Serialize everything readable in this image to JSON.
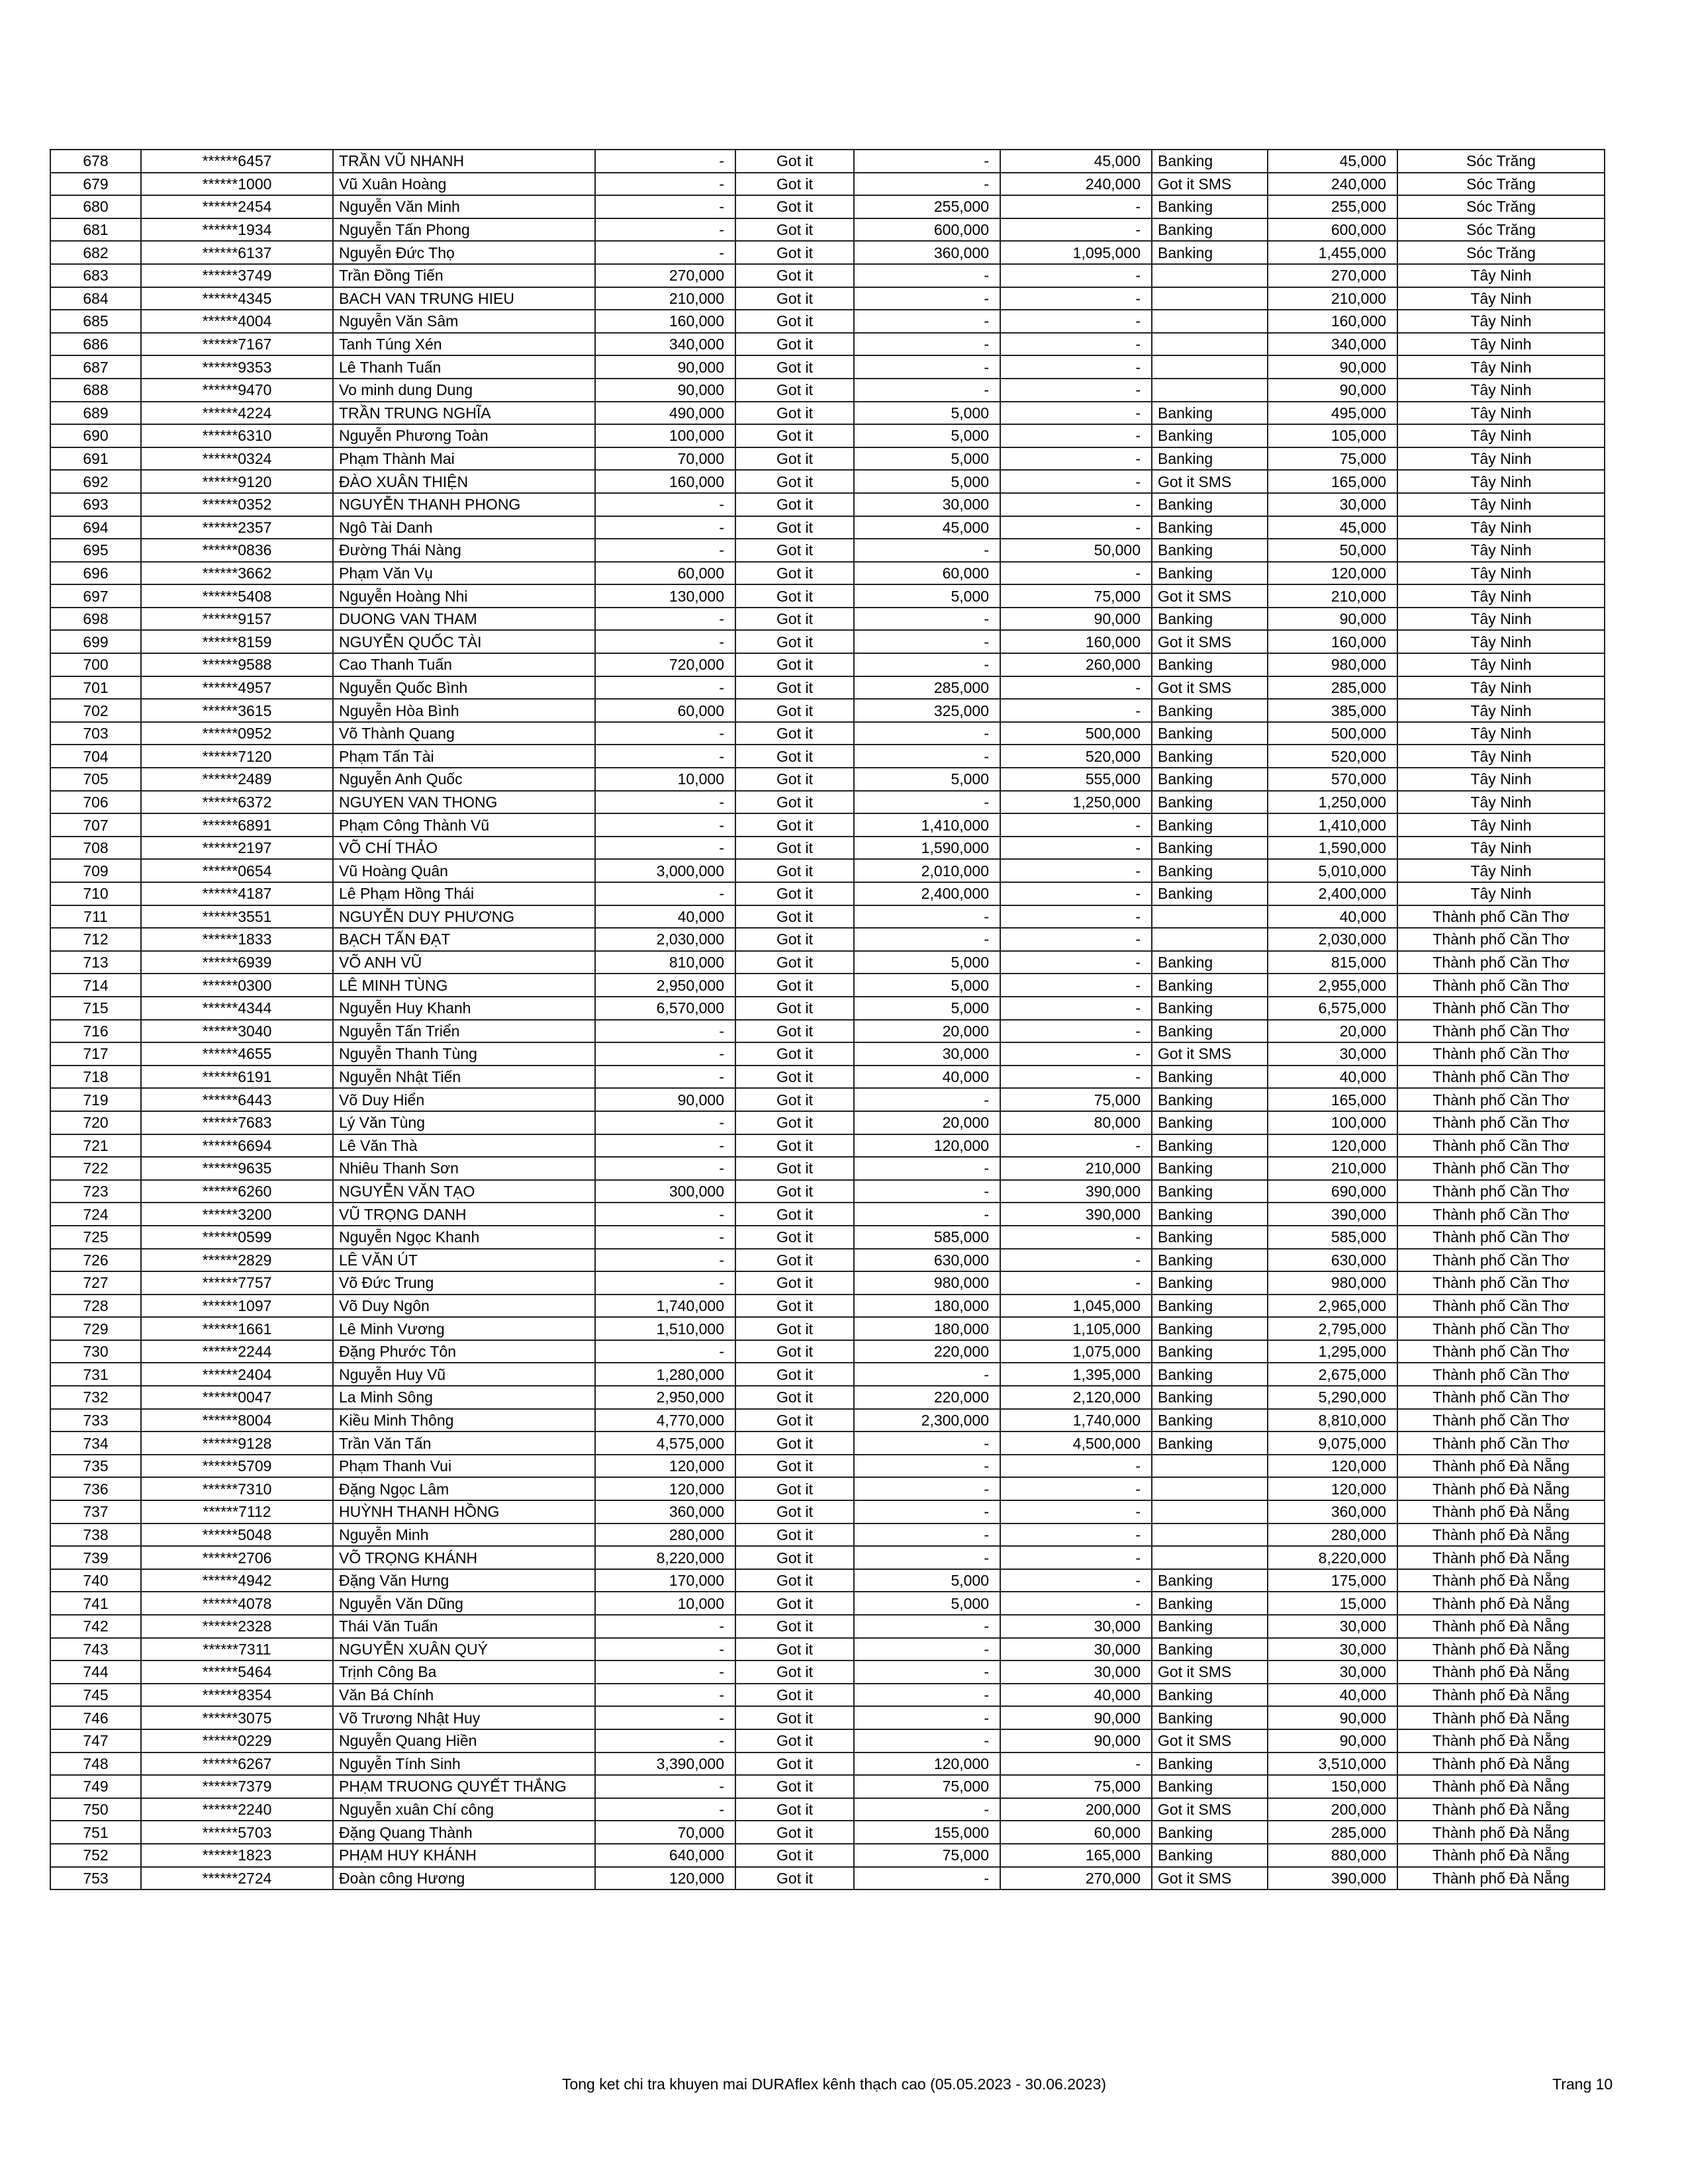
{
  "footer": {
    "title": "Tong ket chi tra khuyen mai DURAflex kênh thạch cao (05.05.2023 - 30.06.2023)",
    "page": "Trang 10"
  },
  "rows": [
    [
      "678",
      "******6457",
      "TRẦN VŨ NHANH",
      "-",
      "Got it",
      "-",
      "45,000",
      "Banking",
      "45,000",
      "Sóc Trăng"
    ],
    [
      "679",
      "******1000",
      "Vũ Xuân Hoàng",
      "-",
      "Got it",
      "-",
      "240,000",
      "Got it SMS",
      "240,000",
      "Sóc Trăng"
    ],
    [
      "680",
      "******2454",
      "Nguyễn Văn Minh",
      "-",
      "Got it",
      "255,000",
      "-",
      "Banking",
      "255,000",
      "Sóc Trăng"
    ],
    [
      "681",
      "******1934",
      "Nguyễn Tấn Phong",
      "-",
      "Got it",
      "600,000",
      "-",
      "Banking",
      "600,000",
      "Sóc Trăng"
    ],
    [
      "682",
      "******6137",
      "Nguyễn Đức Thọ",
      "-",
      "Got it",
      "360,000",
      "1,095,000",
      "Banking",
      "1,455,000",
      "Sóc Trăng"
    ],
    [
      "683",
      "******3749",
      "Trần Đồng Tiến",
      "270,000",
      "Got it",
      "-",
      "-",
      "",
      "270,000",
      "Tây Ninh"
    ],
    [
      "684",
      "******4345",
      "BACH VAN TRUNG HIEU",
      "210,000",
      "Got it",
      "-",
      "-",
      "",
      "210,000",
      "Tây Ninh"
    ],
    [
      "685",
      "******4004",
      "Nguyễn Văn Sâm",
      "160,000",
      "Got it",
      "-",
      "-",
      "",
      "160,000",
      "Tây Ninh"
    ],
    [
      "686",
      "******7167",
      "Tanh Túng Xén",
      "340,000",
      "Got it",
      "-",
      "-",
      "",
      "340,000",
      "Tây Ninh"
    ],
    [
      "687",
      "******9353",
      "Lê Thanh Tuấn",
      "90,000",
      "Got it",
      "-",
      "-",
      "",
      "90,000",
      "Tây Ninh"
    ],
    [
      "688",
      "******9470",
      "Vo minh dung Dung",
      "90,000",
      "Got it",
      "-",
      "-",
      "",
      "90,000",
      "Tây Ninh"
    ],
    [
      "689",
      "******4224",
      "TRẦN TRUNG NGHĨA",
      "490,000",
      "Got it",
      "5,000",
      "-",
      "Banking",
      "495,000",
      "Tây Ninh"
    ],
    [
      "690",
      "******6310",
      "Nguyễn Phương Toàn",
      "100,000",
      "Got it",
      "5,000",
      "-",
      "Banking",
      "105,000",
      "Tây Ninh"
    ],
    [
      "691",
      "******0324",
      "Phạm Thành Mai",
      "70,000",
      "Got it",
      "5,000",
      "-",
      "Banking",
      "75,000",
      "Tây Ninh"
    ],
    [
      "692",
      "******9120",
      "ĐÀO XUÂN THIỆN",
      "160,000",
      "Got it",
      "5,000",
      "-",
      "Got it SMS",
      "165,000",
      "Tây Ninh"
    ],
    [
      "693",
      "******0352",
      "NGUYỄN THANH PHONG",
      "-",
      "Got it",
      "30,000",
      "-",
      "Banking",
      "30,000",
      "Tây Ninh"
    ],
    [
      "694",
      "******2357",
      "Ngô Tài Danh",
      "-",
      "Got it",
      "45,000",
      "-",
      "Banking",
      "45,000",
      "Tây Ninh"
    ],
    [
      "695",
      "******0836",
      "Đường Thái Nàng",
      "-",
      "Got it",
      "-",
      "50,000",
      "Banking",
      "50,000",
      "Tây Ninh"
    ],
    [
      "696",
      "******3662",
      "Phạm Văn Vụ",
      "60,000",
      "Got it",
      "60,000",
      "-",
      "Banking",
      "120,000",
      "Tây Ninh"
    ],
    [
      "697",
      "******5408",
      "Nguyễn Hoàng Nhi",
      "130,000",
      "Got it",
      "5,000",
      "75,000",
      "Got it SMS",
      "210,000",
      "Tây Ninh"
    ],
    [
      "698",
      "******9157",
      "DUONG VAN THAM",
      "-",
      "Got it",
      "-",
      "90,000",
      "Banking",
      "90,000",
      "Tây Ninh"
    ],
    [
      "699",
      "******8159",
      "NGUYỄN QUỐC TÀI",
      "-",
      "Got it",
      "-",
      "160,000",
      "Got it SMS",
      "160,000",
      "Tây Ninh"
    ],
    [
      "700",
      "******9588",
      "Cao Thanh Tuấn",
      "720,000",
      "Got it",
      "-",
      "260,000",
      "Banking",
      "980,000",
      "Tây Ninh"
    ],
    [
      "701",
      "******4957",
      "Nguyễn Quốc Bình",
      "-",
      "Got it",
      "285,000",
      "-",
      "Got it SMS",
      "285,000",
      "Tây Ninh"
    ],
    [
      "702",
      "******3615",
      "Nguyễn Hòa Bình",
      "60,000",
      "Got it",
      "325,000",
      "-",
      "Banking",
      "385,000",
      "Tây Ninh"
    ],
    [
      "703",
      "******0952",
      "Võ Thành Quang",
      "-",
      "Got it",
      "-",
      "500,000",
      "Banking",
      "500,000",
      "Tây Ninh"
    ],
    [
      "704",
      "******7120",
      "Phạm Tấn Tài",
      "-",
      "Got it",
      "-",
      "520,000",
      "Banking",
      "520,000",
      "Tây Ninh"
    ],
    [
      "705",
      "******2489",
      "Nguyễn Anh Quốc",
      "10,000",
      "Got it",
      "5,000",
      "555,000",
      "Banking",
      "570,000",
      "Tây Ninh"
    ],
    [
      "706",
      "******6372",
      "NGUYEN VAN THONG",
      "-",
      "Got it",
      "-",
      "1,250,000",
      "Banking",
      "1,250,000",
      "Tây Ninh"
    ],
    [
      "707",
      "******6891",
      "Phạm Công Thành Vũ",
      "-",
      "Got it",
      "1,410,000",
      "-",
      "Banking",
      "1,410,000",
      "Tây Ninh"
    ],
    [
      "708",
      "******2197",
      "VÕ CHÍ THẢO",
      "-",
      "Got it",
      "1,590,000",
      "-",
      "Banking",
      "1,590,000",
      "Tây Ninh"
    ],
    [
      "709",
      "******0654",
      "Vũ Hoàng Quân",
      "3,000,000",
      "Got it",
      "2,010,000",
      "-",
      "Banking",
      "5,010,000",
      "Tây Ninh"
    ],
    [
      "710",
      "******4187",
      "Lê Phạm Hồng Thái",
      "-",
      "Got it",
      "2,400,000",
      "-",
      "Banking",
      "2,400,000",
      "Tây Ninh"
    ],
    [
      "711",
      "******3551",
      "NGUYỄN DUY PHƯƠNG",
      "40,000",
      "Got it",
      "-",
      "-",
      "",
      "40,000",
      "Thành phố Cần Thơ"
    ],
    [
      "712",
      "******1833",
      "BẠCH TẤN ĐẠT",
      "2,030,000",
      "Got it",
      "-",
      "-",
      "",
      "2,030,000",
      "Thành phố Cần Thơ"
    ],
    [
      "713",
      "******6939",
      "VÕ ANH VŨ",
      "810,000",
      "Got it",
      "5,000",
      "-",
      "Banking",
      "815,000",
      "Thành phố Cần Thơ"
    ],
    [
      "714",
      "******0300",
      "LÊ MINH TÙNG",
      "2,950,000",
      "Got it",
      "5,000",
      "-",
      "Banking",
      "2,955,000",
      "Thành phố Cần Thơ"
    ],
    [
      "715",
      "******4344",
      "Nguyễn Huy Khanh",
      "6,570,000",
      "Got it",
      "5,000",
      "-",
      "Banking",
      "6,575,000",
      "Thành phố Cần Thơ"
    ],
    [
      "716",
      "******3040",
      "Nguyễn Tấn Triển",
      "-",
      "Got it",
      "20,000",
      "-",
      "Banking",
      "20,000",
      "Thành phố Cần Thơ"
    ],
    [
      "717",
      "******4655",
      "Nguyễn Thanh Tùng",
      "-",
      "Got it",
      "30,000",
      "-",
      "Got it SMS",
      "30,000",
      "Thành phố Cần Thơ"
    ],
    [
      "718",
      "******6191",
      "Nguyễn Nhật Tiến",
      "-",
      "Got it",
      "40,000",
      "-",
      "Banking",
      "40,000",
      "Thành phố Cần Thơ"
    ],
    [
      "719",
      "******6443",
      "Võ Duy Hiển",
      "90,000",
      "Got it",
      "-",
      "75,000",
      "Banking",
      "165,000",
      "Thành phố Cần Thơ"
    ],
    [
      "720",
      "******7683",
      "Lý Văn Tùng",
      "-",
      "Got it",
      "20,000",
      "80,000",
      "Banking",
      "100,000",
      "Thành phố Cần Thơ"
    ],
    [
      "721",
      "******6694",
      "Lê Văn Thà",
      "-",
      "Got it",
      "120,000",
      "-",
      "Banking",
      "120,000",
      "Thành phố Cần Thơ"
    ],
    [
      "722",
      "******9635",
      "Nhiêu Thanh Sơn",
      "-",
      "Got it",
      "-",
      "210,000",
      "Banking",
      "210,000",
      "Thành phố Cần Thơ"
    ],
    [
      "723",
      "******6260",
      "NGUYỄN VĂN TẠO",
      "300,000",
      "Got it",
      "-",
      "390,000",
      "Banking",
      "690,000",
      "Thành phố Cần Thơ"
    ],
    [
      "724",
      "******3200",
      "VŨ TRỌNG DANH",
      "-",
      "Got it",
      "-",
      "390,000",
      "Banking",
      "390,000",
      "Thành phố Cần Thơ"
    ],
    [
      "725",
      "******0599",
      "Nguyễn Ngọc Khanh",
      "-",
      "Got it",
      "585,000",
      "-",
      "Banking",
      "585,000",
      "Thành phố Cần Thơ"
    ],
    [
      "726",
      "******2829",
      "LÊ VĂN ÚT",
      "-",
      "Got it",
      "630,000",
      "-",
      "Banking",
      "630,000",
      "Thành phố Cần Thơ"
    ],
    [
      "727",
      "******7757",
      "Võ Đức Trung",
      "-",
      "Got it",
      "980,000",
      "-",
      "Banking",
      "980,000",
      "Thành phố Cần Thơ"
    ],
    [
      "728",
      "******1097",
      "Võ Duy Ngôn",
      "1,740,000",
      "Got it",
      "180,000",
      "1,045,000",
      "Banking",
      "2,965,000",
      "Thành phố Cần Thơ"
    ],
    [
      "729",
      "******1661",
      "Lê Minh Vương",
      "1,510,000",
      "Got it",
      "180,000",
      "1,105,000",
      "Banking",
      "2,795,000",
      "Thành phố Cần Thơ"
    ],
    [
      "730",
      "******2244",
      "Đặng Phước Tôn",
      "-",
      "Got it",
      "220,000",
      "1,075,000",
      "Banking",
      "1,295,000",
      "Thành phố Cần Thơ"
    ],
    [
      "731",
      "******2404",
      "Nguyễn Huy Vũ",
      "1,280,000",
      "Got it",
      "-",
      "1,395,000",
      "Banking",
      "2,675,000",
      "Thành phố Cần Thơ"
    ],
    [
      "732",
      "******0047",
      "La Minh Sông",
      "2,950,000",
      "Got it",
      "220,000",
      "2,120,000",
      "Banking",
      "5,290,000",
      "Thành phố Cần Thơ"
    ],
    [
      "733",
      "******8004",
      "Kiều Minh Thông",
      "4,770,000",
      "Got it",
      "2,300,000",
      "1,740,000",
      "Banking",
      "8,810,000",
      "Thành phố Cần Thơ"
    ],
    [
      "734",
      "******9128",
      "Trần Văn Tấn",
      "4,575,000",
      "Got it",
      "-",
      "4,500,000",
      "Banking",
      "9,075,000",
      "Thành phố Cần Thơ"
    ],
    [
      "735",
      "******5709",
      "Phạm Thanh Vui",
      "120,000",
      "Got it",
      "-",
      "-",
      "",
      "120,000",
      "Thành phố Đà Nẵng"
    ],
    [
      "736",
      "******7310",
      "Đặng Ngọc Lâm",
      "120,000",
      "Got it",
      "-",
      "-",
      "",
      "120,000",
      "Thành phố Đà Nẵng"
    ],
    [
      "737",
      "******7112",
      "HUỲNH THANH HỒNG",
      "360,000",
      "Got it",
      "-",
      "-",
      "",
      "360,000",
      "Thành phố Đà Nẵng"
    ],
    [
      "738",
      "******5048",
      "Nguyễn Minh",
      "280,000",
      "Got it",
      "-",
      "-",
      "",
      "280,000",
      "Thành phố Đà Nẵng"
    ],
    [
      "739",
      "******2706",
      "VÕ TRỌNG KHÁNH",
      "8,220,000",
      "Got it",
      "-",
      "-",
      "",
      "8,220,000",
      "Thành phố Đà Nẵng"
    ],
    [
      "740",
      "******4942",
      "Đặng Văn  Hưng",
      "170,000",
      "Got it",
      "5,000",
      "-",
      "Banking",
      "175,000",
      "Thành phố Đà Nẵng"
    ],
    [
      "741",
      "******4078",
      "Nguyễn Văn Dũng",
      "10,000",
      "Got it",
      "5,000",
      "-",
      "Banking",
      "15,000",
      "Thành phố Đà Nẵng"
    ],
    [
      "742",
      "******2328",
      "Thái Văn Tuấn",
      "-",
      "Got it",
      "-",
      "30,000",
      "Banking",
      "30,000",
      "Thành phố Đà Nẵng"
    ],
    [
      "743",
      "******7311",
      "NGUYỄN XUÂN QUÝ",
      "-",
      "Got it",
      "-",
      "30,000",
      "Banking",
      "30,000",
      "Thành phố Đà Nẵng"
    ],
    [
      "744",
      "******5464",
      "Trịnh Công Ba",
      "-",
      "Got it",
      "-",
      "30,000",
      "Got it SMS",
      "30,000",
      "Thành phố Đà Nẵng"
    ],
    [
      "745",
      "******8354",
      "Văn Bá Chính",
      "-",
      "Got it",
      "-",
      "40,000",
      "Banking",
      "40,000",
      "Thành phố Đà Nẵng"
    ],
    [
      "746",
      "******3075",
      "Võ Trương Nhật Huy",
      "-",
      "Got it",
      "-",
      "90,000",
      "Banking",
      "90,000",
      "Thành phố Đà Nẵng"
    ],
    [
      "747",
      "******0229",
      "Nguyễn Quang Hiền",
      "-",
      "Got it",
      "-",
      "90,000",
      "Got it SMS",
      "90,000",
      "Thành phố Đà Nẵng"
    ],
    [
      "748",
      "******6267",
      "Nguyễn Tính Sinh",
      "3,390,000",
      "Got it",
      "120,000",
      "-",
      "Banking",
      "3,510,000",
      "Thành phố Đà Nẵng"
    ],
    [
      "749",
      "******7379",
      "PHẠM TRUONG QUYẾT THẮNG",
      "-",
      "Got it",
      "75,000",
      "75,000",
      "Banking",
      "150,000",
      "Thành phố Đà Nẵng"
    ],
    [
      "750",
      "******2240",
      "Nguyễn xuân Chí công",
      "-",
      "Got it",
      "-",
      "200,000",
      "Got it SMS",
      "200,000",
      "Thành phố Đà Nẵng"
    ],
    [
      "751",
      "******5703",
      "Đặng Quang Thành",
      "70,000",
      "Got it",
      "155,000",
      "60,000",
      "Banking",
      "285,000",
      "Thành phố Đà Nẵng"
    ],
    [
      "752",
      "******1823",
      "PHẠM HUY KHÁNH",
      "640,000",
      "Got it",
      "75,000",
      "165,000",
      "Banking",
      "880,000",
      "Thành phố Đà Nẵng"
    ],
    [
      "753",
      "******2724",
      "Đoàn công Hương",
      "120,000",
      "Got it",
      "-",
      "270,000",
      "Got it SMS",
      "390,000",
      "Thành phố Đà Nẵng"
    ]
  ]
}
